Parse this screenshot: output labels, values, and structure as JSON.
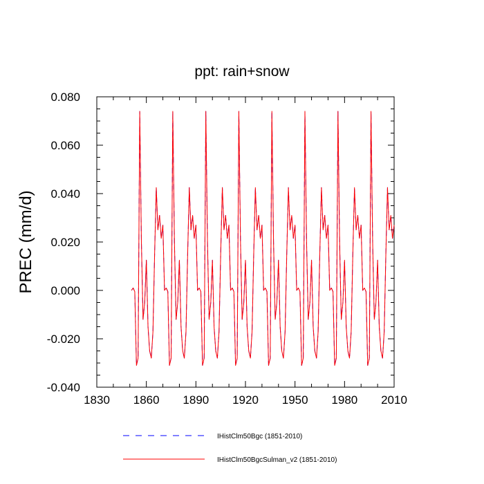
{
  "chart_data": {
    "type": "line",
    "title": "ppt: rain+snow",
    "xlabel": "",
    "ylabel": "PREC  (mm/d)",
    "xlim": [
      1830,
      2010
    ],
    "ylim": [
      -0.04,
      0.08
    ],
    "xticks": [
      1830,
      1860,
      1890,
      1920,
      1950,
      1980,
      2010
    ],
    "xtick_labels": [
      "1830",
      "1860",
      "1890",
      "1920",
      "1950",
      "1980",
      "2010"
    ],
    "yticks": [
      -0.04,
      -0.02,
      0.0,
      0.02,
      0.04,
      0.06,
      0.08
    ],
    "ytick_labels": [
      "-0.040",
      "-0.020",
      "0.000",
      "0.020",
      "0.040",
      "0.060",
      "0.080"
    ],
    "grid": false,
    "legend_position": "bottom",
    "x": [
      1851,
      1852,
      1853,
      1854,
      1855,
      1856,
      1857,
      1858,
      1859,
      1860,
      1861,
      1862,
      1863,
      1864,
      1865,
      1866,
      1867,
      1868,
      1869,
      1870,
      1871,
      1872,
      1873,
      1874,
      1875,
      1876,
      1877,
      1878,
      1879,
      1880,
      1881,
      1882,
      1883,
      1884,
      1885,
      1886,
      1887,
      1888,
      1889,
      1890,
      1891,
      1892,
      1893,
      1894,
      1895,
      1896,
      1897,
      1898,
      1899,
      1900,
      1901,
      1902,
      1903,
      1904,
      1905,
      1906,
      1907,
      1908,
      1909,
      1910,
      1911,
      1912,
      1913,
      1914,
      1915,
      1916,
      1917,
      1918,
      1919,
      1920,
      1921,
      1922,
      1923,
      1924,
      1925,
      1926,
      1927,
      1928,
      1929,
      1930,
      1931,
      1932,
      1933,
      1934,
      1935,
      1936,
      1937,
      1938,
      1939,
      1940,
      1941,
      1942,
      1943,
      1944,
      1945,
      1946,
      1947,
      1948,
      1949,
      1950,
      1951,
      1952,
      1953,
      1954,
      1955,
      1956,
      1957,
      1958,
      1959,
      1960,
      1961,
      1962,
      1963,
      1964,
      1965,
      1966,
      1967,
      1968,
      1969,
      1970,
      1971,
      1972,
      1973,
      1974,
      1975,
      1976,
      1977,
      1978,
      1979,
      1980,
      1981,
      1982,
      1983,
      1984,
      1985,
      1986,
      1987,
      1988,
      1989,
      1990,
      1991,
      1992,
      1993,
      1994,
      1995,
      1996,
      1997,
      1998,
      1999,
      2000,
      2001,
      2002,
      2003,
      2004,
      2005,
      2006,
      2007,
      2008,
      2009,
      2010
    ],
    "series": [
      {
        "name": "IHistClm50Bgc (1851-2010)",
        "color": "#0000ff",
        "dash": "dashed",
        "values": [
          0.0,
          0.001,
          -0.0005,
          -0.031,
          -0.028,
          0.074,
          0.02,
          -0.012,
          -0.005,
          0.0125,
          -0.015,
          -0.025,
          -0.028,
          -0.017,
          0.015,
          0.0425,
          0.025,
          0.031,
          0.0215,
          0.027,
          0.0,
          0.001,
          -0.0005,
          -0.031,
          -0.028,
          0.074,
          0.02,
          -0.012,
          -0.005,
          0.0125,
          -0.015,
          -0.025,
          -0.028,
          -0.017,
          0.015,
          0.0425,
          0.025,
          0.031,
          0.0215,
          0.027,
          0.0,
          0.001,
          -0.0005,
          -0.031,
          -0.028,
          0.074,
          0.02,
          -0.012,
          -0.005,
          0.0125,
          -0.015,
          -0.025,
          -0.028,
          -0.017,
          0.015,
          0.0425,
          0.025,
          0.031,
          0.0215,
          0.027,
          0.0,
          0.001,
          -0.0005,
          -0.031,
          -0.028,
          0.074,
          0.02,
          -0.012,
          -0.005,
          0.0125,
          -0.015,
          -0.025,
          -0.028,
          -0.017,
          0.015,
          0.0425,
          0.025,
          0.031,
          0.0215,
          0.027,
          0.0,
          0.001,
          -0.0005,
          -0.031,
          -0.028,
          0.074,
          0.02,
          -0.012,
          -0.005,
          0.0125,
          -0.015,
          -0.025,
          -0.028,
          -0.017,
          0.015,
          0.0425,
          0.025,
          0.031,
          0.0215,
          0.027,
          0.0,
          0.001,
          -0.0005,
          -0.031,
          -0.028,
          0.074,
          0.02,
          -0.012,
          -0.005,
          0.0125,
          -0.015,
          -0.025,
          -0.028,
          -0.017,
          0.015,
          0.0425,
          0.025,
          0.031,
          0.0215,
          0.027,
          0.0,
          0.001,
          -0.0005,
          -0.031,
          -0.028,
          0.074,
          0.02,
          -0.012,
          -0.005,
          0.0125,
          -0.015,
          -0.025,
          -0.028,
          -0.017,
          0.015,
          0.0425,
          0.025,
          0.031,
          0.0215,
          0.027,
          0.0,
          0.001,
          -0.0005,
          -0.031,
          -0.028,
          0.074,
          0.02,
          -0.012,
          -0.005,
          0.0125,
          -0.015,
          -0.025,
          -0.028,
          -0.017,
          0.015,
          0.0425,
          0.025,
          0.031,
          0.0215,
          0.027
        ]
      },
      {
        "name": "IHistClm50BgcSulman_v2 (1851-2010)",
        "color": "#ff0000",
        "dash": "solid",
        "values": [
          0.0,
          0.001,
          -0.0005,
          -0.031,
          -0.028,
          0.074,
          0.02,
          -0.012,
          -0.005,
          0.0125,
          -0.015,
          -0.025,
          -0.028,
          -0.017,
          0.015,
          0.0425,
          0.025,
          0.031,
          0.0215,
          0.027,
          0.0,
          0.001,
          -0.0005,
          -0.031,
          -0.028,
          0.074,
          0.02,
          -0.012,
          -0.005,
          0.0125,
          -0.015,
          -0.025,
          -0.028,
          -0.017,
          0.015,
          0.0425,
          0.025,
          0.031,
          0.0215,
          0.027,
          0.0,
          0.001,
          -0.0005,
          -0.031,
          -0.028,
          0.074,
          0.02,
          -0.012,
          -0.005,
          0.0125,
          -0.015,
          -0.025,
          -0.028,
          -0.017,
          0.015,
          0.0425,
          0.025,
          0.031,
          0.0215,
          0.027,
          0.0,
          0.001,
          -0.0005,
          -0.031,
          -0.028,
          0.074,
          0.02,
          -0.012,
          -0.005,
          0.0125,
          -0.015,
          -0.025,
          -0.028,
          -0.017,
          0.015,
          0.0425,
          0.025,
          0.031,
          0.0215,
          0.027,
          0.0,
          0.001,
          -0.0005,
          -0.031,
          -0.028,
          0.074,
          0.02,
          -0.012,
          -0.005,
          0.0125,
          -0.015,
          -0.025,
          -0.028,
          -0.017,
          0.015,
          0.0425,
          0.025,
          0.031,
          0.0215,
          0.027,
          0.0,
          0.001,
          -0.0005,
          -0.031,
          -0.028,
          0.074,
          0.02,
          -0.012,
          -0.005,
          0.0125,
          -0.015,
          -0.025,
          -0.028,
          -0.017,
          0.015,
          0.0425,
          0.025,
          0.031,
          0.0215,
          0.027,
          0.0,
          0.001,
          -0.0005,
          -0.031,
          -0.028,
          0.074,
          0.02,
          -0.012,
          -0.005,
          0.0125,
          -0.015,
          -0.025,
          -0.028,
          -0.017,
          0.015,
          0.0425,
          0.025,
          0.031,
          0.0215,
          0.027,
          0.0,
          0.001,
          -0.0005,
          -0.031,
          -0.028,
          0.074,
          0.02,
          -0.012,
          -0.005,
          0.0125,
          -0.015,
          -0.025,
          -0.028,
          -0.017,
          0.015,
          0.0425,
          0.025,
          0.031,
          0.0215,
          0.027
        ]
      }
    ]
  }
}
